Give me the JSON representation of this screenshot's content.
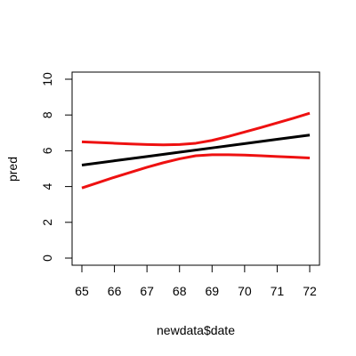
{
  "chart_data": {
    "type": "line",
    "title": "",
    "xlabel": "newdata$date",
    "ylabel": "pred",
    "xlim": [
      65,
      72
    ],
    "ylim": [
      0,
      10
    ],
    "x_ticks": [
      "65",
      "66",
      "67",
      "68",
      "69",
      "70",
      "71",
      "72"
    ],
    "y_ticks": [
      "0",
      "2",
      "4",
      "6",
      "8",
      "10"
    ],
    "grid": false,
    "legend": "none",
    "series": [
      {
        "role": "fit",
        "color": "#000000",
        "x": [
          65,
          66,
          67,
          68,
          69,
          70,
          71,
          72
        ],
        "y": [
          5.2,
          5.44,
          5.68,
          5.92,
          6.16,
          6.4,
          6.64,
          6.88
        ]
      },
      {
        "role": "upper-bound",
        "color": "#ee1111",
        "x": [
          65,
          65.5,
          66,
          66.5,
          67,
          67.5,
          68,
          68.5,
          69,
          69.5,
          70,
          70.5,
          71,
          71.5,
          72
        ],
        "y": [
          6.5,
          6.46,
          6.42,
          6.38,
          6.35,
          6.33,
          6.35,
          6.42,
          6.58,
          6.8,
          7.05,
          7.3,
          7.56,
          7.82,
          8.1
        ]
      },
      {
        "role": "lower-bound",
        "color": "#ee1111",
        "x": [
          65,
          65.5,
          66,
          66.5,
          67,
          67.5,
          68,
          68.5,
          69,
          69.5,
          70,
          70.5,
          71,
          71.5,
          72
        ],
        "y": [
          3.92,
          4.22,
          4.52,
          4.8,
          5.08,
          5.33,
          5.55,
          5.72,
          5.78,
          5.78,
          5.76,
          5.72,
          5.68,
          5.64,
          5.6
        ]
      }
    ]
  }
}
